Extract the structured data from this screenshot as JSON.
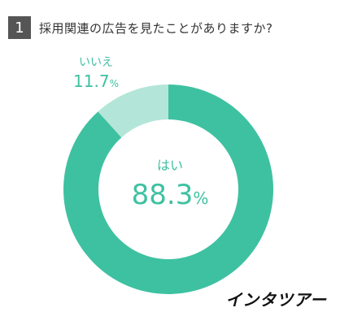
{
  "question": {
    "number": "1",
    "text": "採用関連の広告を見たことがありますか?"
  },
  "chart_data": {
    "type": "pie",
    "categories": [
      "はい",
      "いいえ"
    ],
    "values": [
      88.3,
      11.7
    ],
    "unit": "%",
    "colors": [
      "#3ec1a1",
      "#b3e6d8"
    ]
  },
  "labels": {
    "yes_category": "はい",
    "yes_value": "88.3",
    "no_category": "いいえ",
    "no_value": "11.7",
    "unit": "%"
  },
  "logo": "インタツアー"
}
